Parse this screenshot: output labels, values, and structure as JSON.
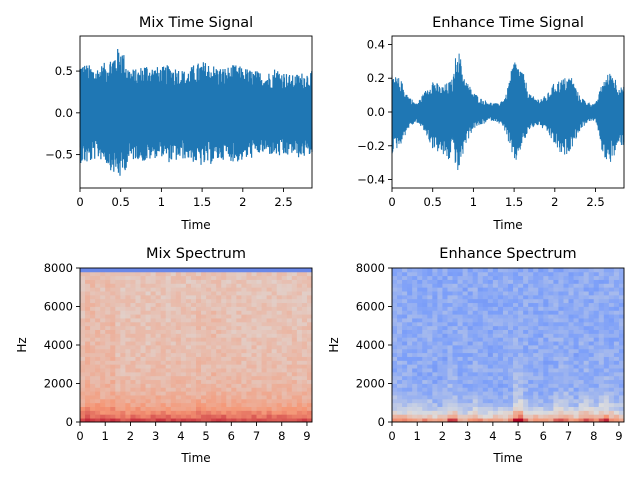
{
  "chart_data": [
    {
      "type": "line",
      "title": "Mix Time Signal",
      "xlabel": "Time",
      "ylabel": "",
      "xlim": [
        0,
        2.85
      ],
      "ylim": [
        -0.9,
        0.92
      ],
      "xticks": [
        0,
        0.5,
        1,
        1.5,
        2,
        2.5
      ],
      "xtick_labels": [
        "0",
        "0.5",
        "1",
        "1.5",
        "2",
        "2.5"
      ],
      "yticks": [
        -0.5,
        0,
        0.5
      ],
      "ytick_labels": [
        "−0.5",
        "0.0",
        "0.5"
      ],
      "color": "#1f77b4",
      "series": [
        {
          "x": [
            0,
            0.1,
            0.2,
            0.3,
            0.4,
            0.5,
            0.6,
            0.7,
            0.8,
            0.9,
            1.0,
            1.1,
            1.2,
            1.3,
            1.4,
            1.5,
            1.6,
            1.7,
            1.8,
            1.9,
            2.0,
            2.1,
            2.2,
            2.3,
            2.4,
            2.5,
            2.6,
            2.7,
            2.8
          ],
          "upper": [
            0.62,
            0.58,
            0.55,
            0.6,
            0.7,
            0.82,
            0.55,
            0.52,
            0.6,
            0.56,
            0.55,
            0.58,
            0.55,
            0.5,
            0.58,
            0.62,
            0.6,
            0.55,
            0.55,
            0.58,
            0.55,
            0.52,
            0.5,
            0.48,
            0.55,
            0.5,
            0.45,
            0.48,
            0.5
          ],
          "lower": [
            -0.6,
            -0.62,
            -0.55,
            -0.58,
            -0.72,
            -0.8,
            -0.6,
            -0.55,
            -0.6,
            -0.55,
            -0.52,
            -0.6,
            -0.58,
            -0.55,
            -0.6,
            -0.65,
            -0.62,
            -0.58,
            -0.55,
            -0.6,
            -0.58,
            -0.55,
            -0.5,
            -0.5,
            -0.52,
            -0.55,
            -0.5,
            -0.55,
            -0.52
          ]
        }
      ]
    },
    {
      "type": "line",
      "title": "Enhance Time Signal",
      "xlabel": "Time",
      "ylabel": "",
      "xlim": [
        0,
        2.85
      ],
      "ylim": [
        -0.45,
        0.45
      ],
      "xticks": [
        0,
        0.5,
        1,
        1.5,
        2,
        2.5
      ],
      "xtick_labels": [
        "0",
        "0.5",
        "1",
        "1.5",
        "2",
        "2.5"
      ],
      "yticks": [
        -0.4,
        -0.2,
        0,
        0.2,
        0.4
      ],
      "ytick_labels": [
        "−0.4",
        "−0.2",
        "0.0",
        "0.2",
        "0.4"
      ],
      "color": "#1f77b4",
      "series": [
        {
          "x": [
            0,
            0.1,
            0.2,
            0.3,
            0.4,
            0.5,
            0.6,
            0.7,
            0.75,
            0.8,
            0.9,
            1.0,
            1.1,
            1.2,
            1.3,
            1.4,
            1.5,
            1.6,
            1.7,
            1.8,
            1.9,
            2.0,
            2.1,
            2.2,
            2.3,
            2.4,
            2.5,
            2.6,
            2.7,
            2.8
          ],
          "upper": [
            0.22,
            0.2,
            0.1,
            0.05,
            0.12,
            0.2,
            0.15,
            0.18,
            0.2,
            0.41,
            0.2,
            0.12,
            0.08,
            0.06,
            0.05,
            0.1,
            0.32,
            0.25,
            0.1,
            0.08,
            0.1,
            0.18,
            0.2,
            0.22,
            0.1,
            0.06,
            0.05,
            0.2,
            0.25,
            0.15
          ],
          "lower": [
            -0.25,
            -0.2,
            -0.1,
            -0.06,
            -0.12,
            -0.22,
            -0.25,
            -0.3,
            -0.2,
            -0.4,
            -0.2,
            -0.1,
            -0.08,
            -0.05,
            -0.06,
            -0.12,
            -0.33,
            -0.2,
            -0.1,
            -0.08,
            -0.12,
            -0.2,
            -0.28,
            -0.22,
            -0.12,
            -0.06,
            -0.05,
            -0.28,
            -0.3,
            -0.2
          ]
        }
      ]
    },
    {
      "type": "heatmap",
      "title": "Mix Spectrum",
      "xlabel": "Time",
      "ylabel": "Hz",
      "xlim": [
        0,
        9.2
      ],
      "ylim": [
        0,
        8000
      ],
      "xticks": [
        0,
        1,
        2,
        3,
        4,
        5,
        6,
        7,
        8,
        9
      ],
      "xtick_labels": [
        "0",
        "1",
        "2",
        "3",
        "4",
        "5",
        "6",
        "7",
        "8",
        "9"
      ],
      "yticks": [
        0,
        2000,
        4000,
        6000,
        8000
      ],
      "ytick_labels": [
        "0",
        "2000",
        "4000",
        "6000",
        "8000"
      ],
      "colormap": "coolwarm",
      "time_energy": [
        0.6,
        0.75,
        0.7,
        0.7,
        0.65,
        0.7,
        0.72,
        0.6,
        0.58,
        0.6,
        0.6,
        0.62,
        0.6,
        0.58,
        0.6,
        0.62,
        0.6,
        0.58,
        0.6,
        0.62,
        0.6,
        0.58,
        0.6,
        0.65,
        0.6,
        0.62,
        0.68,
        0.65,
        0.62,
        0.6,
        0.58,
        0.62,
        0.6,
        0.58,
        0.6,
        0.58,
        0.6,
        0.6,
        0.58,
        0.6,
        0.58,
        0.6,
        0.6,
        0.58,
        0.6,
        0.6
      ],
      "cutoff_hz": 7750
    },
    {
      "type": "heatmap",
      "title": "Enhance Spectrum",
      "xlabel": "Time",
      "ylabel": "Hz",
      "xlim": [
        0,
        9.2
      ],
      "ylim": [
        0,
        8000
      ],
      "xticks": [
        0,
        1,
        2,
        3,
        4,
        5,
        6,
        7,
        8,
        9
      ],
      "xtick_labels": [
        "0",
        "1",
        "2",
        "3",
        "4",
        "5",
        "6",
        "7",
        "8",
        "9"
      ],
      "yticks": [
        0,
        2000,
        4000,
        6000,
        8000
      ],
      "ytick_labels": [
        "0",
        "2000",
        "4000",
        "6000",
        "8000"
      ],
      "colormap": "coolwarm",
      "time_energy": [
        0.55,
        0.55,
        0.5,
        0.52,
        0.5,
        0.48,
        0.5,
        0.5,
        0.45,
        0.42,
        0.45,
        0.62,
        0.6,
        0.45,
        0.42,
        0.45,
        0.55,
        0.5,
        0.45,
        0.42,
        0.45,
        0.42,
        0.45,
        0.48,
        0.72,
        0.75,
        0.55,
        0.48,
        0.5,
        0.45,
        0.42,
        0.45,
        0.55,
        0.62,
        0.6,
        0.5,
        0.45,
        0.58,
        0.62,
        0.55,
        0.48,
        0.62,
        0.65,
        0.55,
        0.5,
        0.48
      ],
      "cutoff_hz": 8000
    }
  ]
}
